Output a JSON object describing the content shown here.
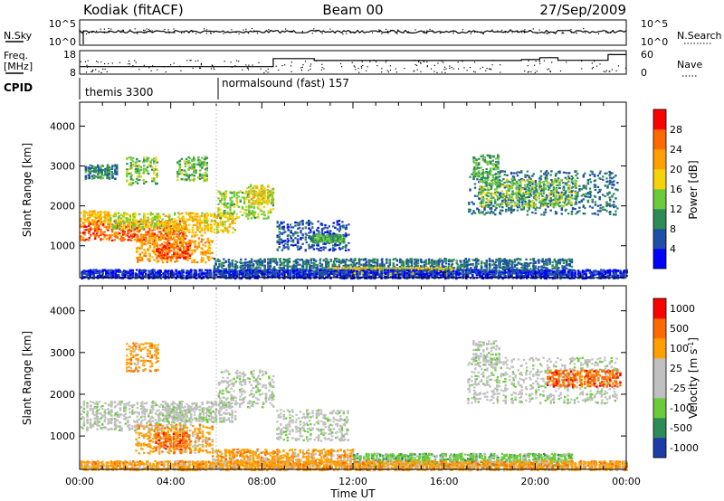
{
  "header": {
    "station": "Kodiak (fitACF)",
    "beam": "Beam 00",
    "date": "27/Sep/2009"
  },
  "left_labels": {
    "nsky": "N.Sky",
    "freq_line1": "Freq.",
    "freq_line2": "[MHz]",
    "cpid": "CPID"
  },
  "right_labels": {
    "nsearch": "N.Search",
    "nave": "Nave"
  },
  "cpid_segments": [
    {
      "label": "themis 3300",
      "start_hour": 0
    },
    {
      "label": "normalsound (fast) 157",
      "start_hour": 6
    }
  ],
  "chart_data": [
    {
      "type": "line",
      "name": "noise-panel",
      "y_left_ticks": [
        "10^5",
        "10^0"
      ],
      "y_right_ticks": [
        "10^5",
        "10^0"
      ],
      "series": [
        {
          "name": "N.Sky",
          "style": "solid"
        },
        {
          "name": "N.Search",
          "style": "dotted"
        }
      ]
    },
    {
      "type": "line",
      "name": "freq-nave-panel",
      "y_left_ticks": [
        18,
        8
      ],
      "y_left_range": [
        8,
        18
      ],
      "y_right_ticks": [
        60,
        0
      ],
      "y_right_range": [
        0,
        60
      ],
      "freq_steps": [
        {
          "x": 0.0,
          "y": 11.2
        },
        {
          "x": 8.5,
          "y": 11.2
        },
        {
          "x": 8.5,
          "y": 14.6
        },
        {
          "x": 10.3,
          "y": 14.6
        },
        {
          "x": 10.3,
          "y": 13.8
        },
        {
          "x": 19.4,
          "y": 13.8
        },
        {
          "x": 19.4,
          "y": 14.2
        },
        {
          "x": 20.2,
          "y": 14.2
        },
        {
          "x": 20.2,
          "y": 15.0
        },
        {
          "x": 21.0,
          "y": 15.0
        },
        {
          "x": 21.0,
          "y": 13.9
        },
        {
          "x": 23.2,
          "y": 13.9
        },
        {
          "x": 23.2,
          "y": 16.3
        },
        {
          "x": 24.0,
          "y": 16.3
        }
      ]
    },
    {
      "type": "heatmap",
      "name": "power-panel",
      "xlabel": "",
      "ylabel": "Slant Range [km]",
      "x_range": [
        0,
        24
      ],
      "y_range": [
        200,
        4600
      ],
      "y_ticks": [
        1000,
        2000,
        3000,
        4000
      ],
      "x_tick_labels": [
        "00:00",
        "04:00",
        "08:00",
        "12:00",
        "16:00",
        "20:00",
        "00:00"
      ],
      "colorbar_label": "Power [dB]",
      "colorbar_ticks": [
        4,
        8,
        12,
        16,
        20,
        24,
        28
      ],
      "colorbar_range": [
        0,
        32
      ],
      "colors": [
        "#0000ff",
        "#1f4ea8",
        "#2e8b57",
        "#6ccb3c",
        "#f5d20a",
        "#ffa000",
        "#ff6a00",
        "#ff0000"
      ],
      "blobs": [
        {
          "t": [
            0.0,
            4.6
          ],
          "r": [
            1150,
            1650
          ],
          "v": 26
        },
        {
          "t": [
            0.0,
            1.3
          ],
          "r": [
            1600,
            1900
          ],
          "v": 20
        },
        {
          "t": [
            1.3,
            3.6
          ],
          "r": [
            1450,
            1850
          ],
          "v": 16
        },
        {
          "t": [
            0.2,
            1.6
          ],
          "r": [
            2700,
            3050
          ],
          "v": 9
        },
        {
          "t": [
            2.0,
            3.4
          ],
          "r": [
            2550,
            3250
          ],
          "v": 14
        },
        {
          "t": [
            2.4,
            5.8
          ],
          "r": [
            600,
            1300
          ],
          "v": 22
        },
        {
          "t": [
            3.3,
            4.8
          ],
          "r": [
            700,
            1100
          ],
          "v": 27
        },
        {
          "t": [
            3.6,
            6.8
          ],
          "r": [
            1350,
            1850
          ],
          "v": 19
        },
        {
          "t": [
            4.2,
            5.6
          ],
          "r": [
            2650,
            3250
          ],
          "v": 13
        },
        {
          "t": [
            6.0,
            8.5
          ],
          "r": [
            1700,
            2400
          ],
          "v": 15
        },
        {
          "t": [
            7.3,
            8.5
          ],
          "r": [
            2050,
            2550
          ],
          "v": 18
        },
        {
          "t": [
            8.6,
            11.8
          ],
          "r": [
            900,
            1650
          ],
          "v": 6
        },
        {
          "t": [
            10.1,
            11.6
          ],
          "r": [
            1100,
            1300
          ],
          "v": 12
        },
        {
          "t": [
            5.8,
            21.6
          ],
          "r": [
            300,
            700
          ],
          "v": 8
        },
        {
          "t": [
            10.8,
            16.4
          ],
          "r": [
            300,
            480
          ],
          "v": 18
        },
        {
          "t": [
            17.0,
            23.6
          ],
          "r": [
            1800,
            2900
          ],
          "v": 8
        },
        {
          "t": [
            17.5,
            21.8
          ],
          "r": [
            2000,
            2700
          ],
          "v": 14
        },
        {
          "t": [
            17.2,
            18.4
          ],
          "r": [
            2700,
            3300
          ],
          "v": 12
        },
        {
          "t": [
            0.0,
            24.0
          ],
          "r": [
            200,
            420
          ],
          "v": 4
        }
      ]
    },
    {
      "type": "heatmap",
      "name": "velocity-panel",
      "xlabel": "Time UT",
      "ylabel": "Slant Range [km]",
      "x_range": [
        0,
        24
      ],
      "y_range": [
        200,
        4600
      ],
      "y_ticks": [
        1000,
        2000,
        3000,
        4000
      ],
      "x_tick_labels": [
        "00:00",
        "04:00",
        "08:00",
        "12:00",
        "16:00",
        "20:00",
        "00:00"
      ],
      "colorbar_label": "Velocity [m s",
      "colorbar_unit_sup": "-1",
      "colorbar_ticks": [
        "1000",
        "500",
        "100",
        "25",
        "-25",
        "-100",
        "-500",
        "-1000"
      ],
      "colors": [
        "#1e3ca8",
        "#2e8b57",
        "#6ccb3c",
        "#c0c0c0",
        "#c0c0c0",
        "#ffa000",
        "#ff6a00",
        "#ff0000"
      ],
      "blobs": [
        {
          "t": [
            0.0,
            4.6
          ],
          "r": [
            1150,
            1850
          ],
          "v": 3
        },
        {
          "t": [
            2.4,
            5.8
          ],
          "r": [
            600,
            1300
          ],
          "v": 5
        },
        {
          "t": [
            3.3,
            4.8
          ],
          "r": [
            700,
            1100
          ],
          "v": 6
        },
        {
          "t": [
            3.6,
            6.8
          ],
          "r": [
            1350,
            1850
          ],
          "v": 3
        },
        {
          "t": [
            6.0,
            8.5
          ],
          "r": [
            1700,
            2600
          ],
          "v": 3
        },
        {
          "t": [
            2.0,
            3.4
          ],
          "r": [
            2550,
            3250
          ],
          "v": 5
        },
        {
          "t": [
            8.6,
            11.8
          ],
          "r": [
            900,
            1650
          ],
          "v": 3
        },
        {
          "t": [
            5.8,
            12.0
          ],
          "r": [
            300,
            700
          ],
          "v": 5
        },
        {
          "t": [
            12.0,
            21.6
          ],
          "r": [
            300,
            600
          ],
          "v": 2
        },
        {
          "t": [
            17.0,
            23.6
          ],
          "r": [
            1800,
            2900
          ],
          "v": 3
        },
        {
          "t": [
            20.5,
            23.7
          ],
          "r": [
            2200,
            2600
          ],
          "v": 6
        },
        {
          "t": [
            17.2,
            18.4
          ],
          "r": [
            2700,
            3300
          ],
          "v": 3
        },
        {
          "t": [
            0.0,
            24.0
          ],
          "r": [
            200,
            420
          ],
          "v": 5
        }
      ]
    }
  ]
}
